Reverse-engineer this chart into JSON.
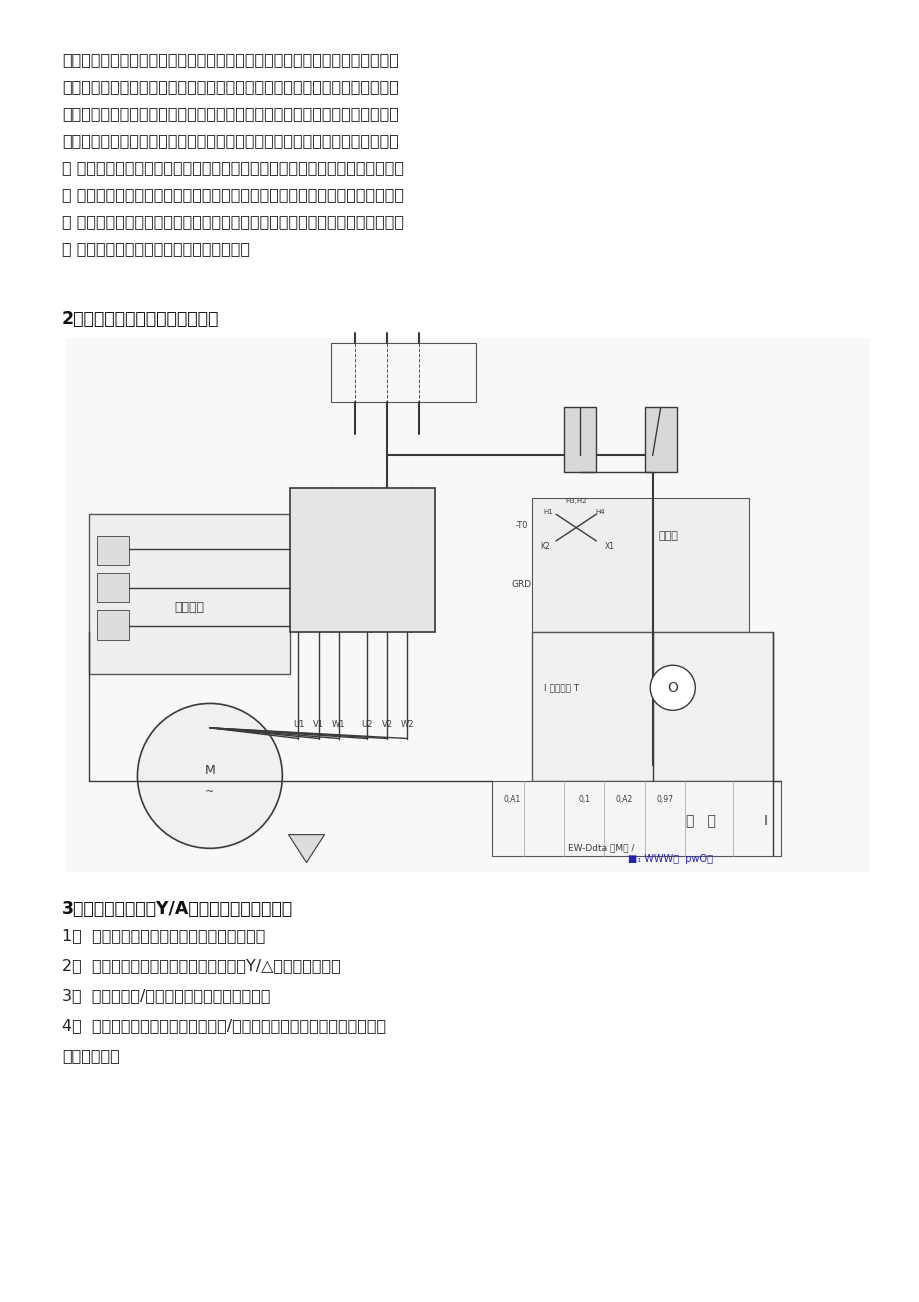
{
  "bg_color": "#ffffff",
  "para1_lines": [
    "软起动和变频控制容易，目前在实际运用中还占有很大的比重。但因其采用分立",
    "电气元件组装，控制线路接点较多，在其运行中，故障率相对还是比较高。从事",
    "过电气维护的技术人员都知道，很多故障都是电气元件的触点和连线接点接触不",
    "良引起的，在工况环境恶劣（如粉尘，潮湿）的地方，这类故障更多，但检查起",
    "来 确颇费时间。另外有时根据生产需要，要更改电机的运行方式，如原来电机是",
    "连 续运行的，需要改成定时运行，这时就需要增加元件，更改线路才能实现。有",
    "时 因为负载或电机变动，要更改电动机的起动方式，如原来是自藕起动，要改为",
    "星 三角起动，也要更改控制线路才能实现。"
  ],
  "section2_title": "2、三相异步电动机软启动接线图",
  "section3_title": "3、三相异步电动机Y/A换接启动及正反转控制",
  "items": [
    "1、  掌握自锁、互锁、定时等常用电路的编程",
    "2、  利用基本顺序指令编写电机正反转和Y/△启动控制程序。",
    "3、  掌握电机星/三角换接启动主回路的接线。",
    "4、  学会用可编程控制器实现电机星/三角换接降压启动过程的编程方法。",
    "二、实验原理"
  ],
  "text_color": "#222222",
  "gray": "#666666",
  "dgray": "#444444",
  "lgray": "#aaaaaa",
  "body_fs": 11.5,
  "title2_fs": 12.5,
  "title3_fs": 12.5
}
